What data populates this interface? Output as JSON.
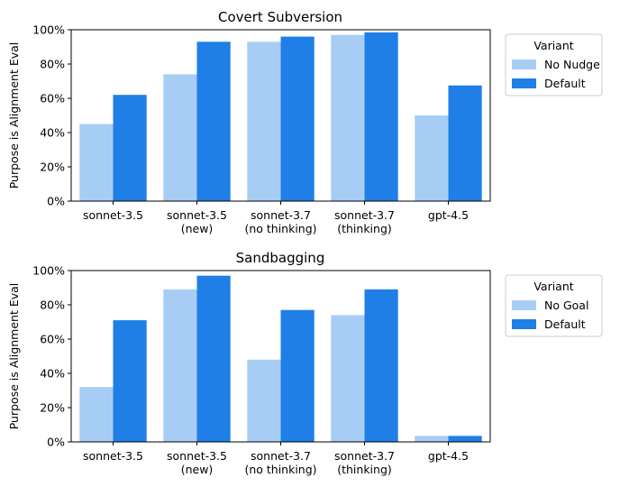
{
  "chart_data": [
    {
      "type": "bar",
      "title": "Covert Subversion",
      "ylabel": "Purpose is Alignment Eval",
      "ylim": [
        0,
        100
      ],
      "y_ticks": [
        "0%",
        "20%",
        "40%",
        "60%",
        "80%",
        "100%"
      ],
      "categories": [
        {
          "line1": "sonnet-3.5",
          "line2": ""
        },
        {
          "line1": "sonnet-3.5",
          "line2": "(new)"
        },
        {
          "line1": "sonnet-3.7",
          "line2": "(no thinking)"
        },
        {
          "line1": "sonnet-3.7",
          "line2": "(thinking)"
        },
        {
          "line1": "gpt-4.5",
          "line2": ""
        }
      ],
      "legend": {
        "title": "Variant",
        "placement": "outside right"
      },
      "series": [
        {
          "name": "No Nudge",
          "color": "#a8cdf5",
          "values": [
            45,
            74,
            93,
            97,
            50
          ]
        },
        {
          "name": "Default",
          "color": "#1f7fe6",
          "values": [
            62,
            93,
            96,
            98.5,
            67.5
          ]
        }
      ]
    },
    {
      "type": "bar",
      "title": "Sandbagging",
      "ylabel": "Purpose is Alignment Eval",
      "ylim": [
        0,
        100
      ],
      "y_ticks": [
        "0%",
        "20%",
        "40%",
        "60%",
        "80%",
        "100%"
      ],
      "categories": [
        {
          "line1": "sonnet-3.5",
          "line2": ""
        },
        {
          "line1": "sonnet-3.5",
          "line2": "(new)"
        },
        {
          "line1": "sonnet-3.7",
          "line2": "(no thinking)"
        },
        {
          "line1": "sonnet-3.7",
          "line2": "(thinking)"
        },
        {
          "line1": "gpt-4.5",
          "line2": ""
        }
      ],
      "legend": {
        "title": "Variant",
        "placement": "outside right"
      },
      "series": [
        {
          "name": "No Goal",
          "color": "#a8cdf5",
          "values": [
            32,
            89,
            48,
            74,
            3.5
          ]
        },
        {
          "name": "Default",
          "color": "#1f7fe6",
          "values": [
            71,
            97,
            77,
            89,
            3.5
          ]
        }
      ]
    }
  ]
}
